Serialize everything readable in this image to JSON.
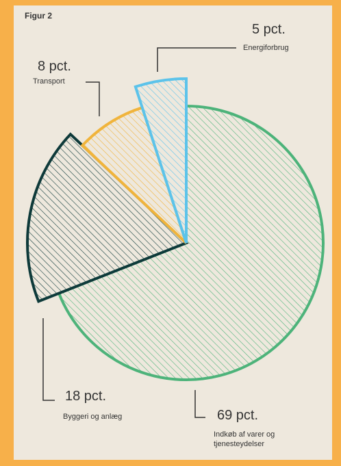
{
  "chart_data": {
    "type": "pie",
    "title": "Figur 2",
    "categories": [
      "Indkøb af varer og tjenesteydelser",
      "Byggeri og anlæg",
      "Transport",
      "Energiforbrug"
    ],
    "values": [
      69,
      18,
      8,
      5
    ],
    "value_labels": [
      "69 pct.",
      "18 pct.",
      "8 pct.",
      "5 pct."
    ],
    "colors": [
      "#4db37a",
      "#0e3a3a",
      "#f0b43c",
      "#5cc3ea"
    ]
  }
}
